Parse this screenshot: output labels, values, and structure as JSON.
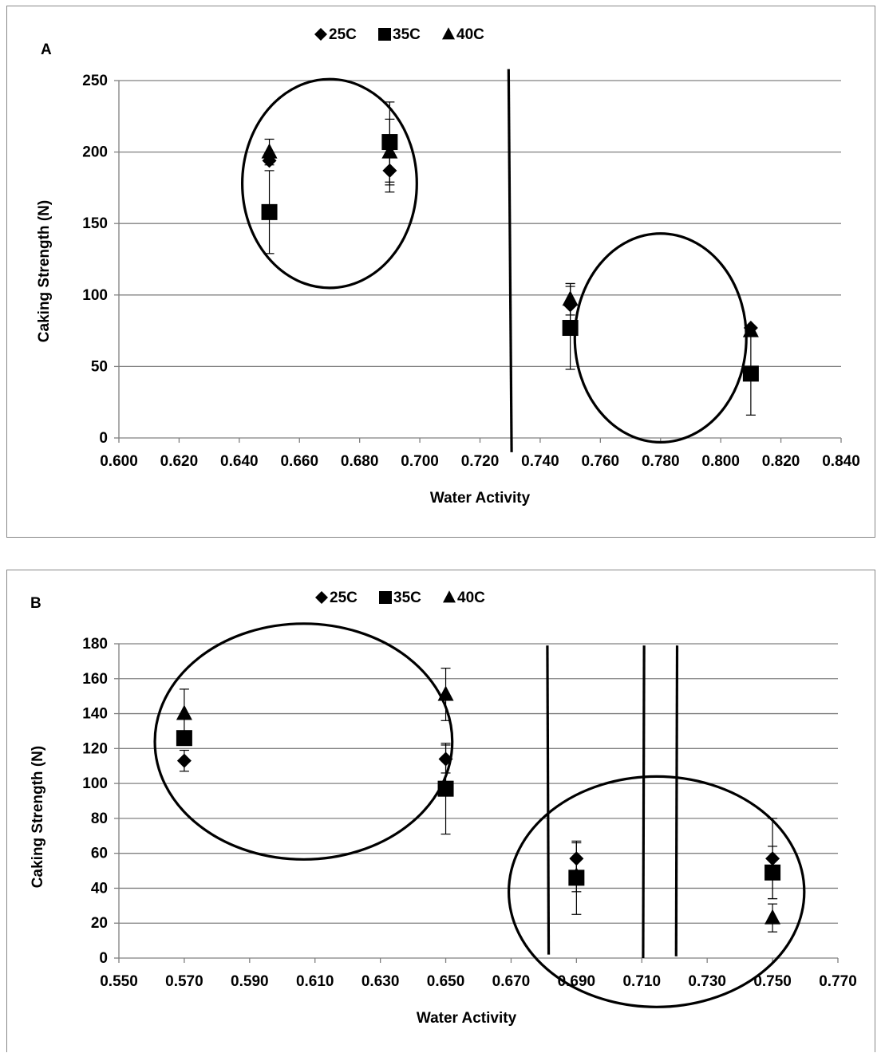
{
  "chart_data": [
    {
      "type": "scatter",
      "panel_label": "A",
      "xlabel": "Water Activity",
      "ylabel": "Caking Strength (N)",
      "xlim": [
        0.6,
        0.84
      ],
      "ylim": [
        0,
        250
      ],
      "x_ticks": [
        "0.600",
        "0.620",
        "0.640",
        "0.660",
        "0.680",
        "0.700",
        "0.720",
        "0.740",
        "0.760",
        "0.780",
        "0.800",
        "0.820",
        "0.840"
      ],
      "y_ticks": [
        "0",
        "50",
        "100",
        "150",
        "200",
        "250"
      ],
      "grid": "horizontal",
      "legend_position": "top-center",
      "series": [
        {
          "name": "25C",
          "marker": "diamond",
          "points": [
            {
              "x": 0.65,
              "y": 194,
              "err": 0
            },
            {
              "x": 0.69,
              "y": 187,
              "err": 15
            },
            {
              "x": 0.75,
              "y": 93,
              "err": 15
            },
            {
              "x": 0.81,
              "y": 77,
              "err": 0
            }
          ]
        },
        {
          "name": "35C",
          "marker": "square",
          "points": [
            {
              "x": 0.65,
              "y": 158,
              "err": 29
            },
            {
              "x": 0.69,
              "y": 207,
              "err": 28
            },
            {
              "x": 0.75,
              "y": 77,
              "err": 29
            },
            {
              "x": 0.81,
              "y": 45,
              "err": 29
            }
          ]
        },
        {
          "name": "40C",
          "marker": "triangle",
          "points": [
            {
              "x": 0.65,
              "y": 200,
              "err": 9
            },
            {
              "x": 0.69,
              "y": 200,
              "err": 23
            },
            {
              "x": 0.75,
              "y": 97,
              "err": 11
            },
            {
              "x": 0.81,
              "y": 75,
              "err": 0
            }
          ]
        }
      ],
      "annotations": [
        {
          "type": "ellipse",
          "cx": 0.67,
          "cy": 178,
          "rx": 0.029,
          "ry": 73
        },
        {
          "type": "ellipse",
          "cx": 0.78,
          "cy": 70,
          "rx": 0.0285,
          "ry": 73
        },
        {
          "type": "line",
          "x1": 0.7295,
          "y1": 258,
          "x2": 0.7305,
          "y2": -10
        }
      ]
    },
    {
      "type": "scatter",
      "panel_label": "B",
      "xlabel": "Water Activity",
      "ylabel": "Caking Strength (N)",
      "xlim": [
        0.55,
        0.77
      ],
      "ylim": [
        0,
        180
      ],
      "x_ticks": [
        "0.550",
        "0.570",
        "0.590",
        "0.610",
        "0.630",
        "0.650",
        "0.670",
        "0.690",
        "0.710",
        "0.730",
        "0.750",
        "0.770"
      ],
      "y_ticks": [
        "0",
        "20",
        "40",
        "60",
        "80",
        "100",
        "120",
        "140",
        "160",
        "180"
      ],
      "grid": "horizontal",
      "legend_position": "top-center",
      "series": [
        {
          "name": "25C",
          "marker": "diamond",
          "points": [
            {
              "x": 0.57,
              "y": 113,
              "err": 6
            },
            {
              "x": 0.65,
              "y": 114,
              "err": 8
            },
            {
              "x": 0.69,
              "y": 57,
              "err": 9
            },
            {
              "x": 0.75,
              "y": 57,
              "err": 23
            }
          ]
        },
        {
          "name": "35C",
          "marker": "square",
          "points": [
            {
              "x": 0.57,
              "y": 126,
              "err": 0
            },
            {
              "x": 0.65,
              "y": 97,
              "err": 26
            },
            {
              "x": 0.69,
              "y": 46,
              "err": 21
            },
            {
              "x": 0.75,
              "y": 49,
              "err": 15
            }
          ]
        },
        {
          "name": "40C",
          "marker": "triangle",
          "points": [
            {
              "x": 0.57,
              "y": 140,
              "err": 14
            },
            {
              "x": 0.65,
              "y": 151,
              "err": 15
            },
            {
              "x": 0.69,
              "y": 47,
              "err": 9
            },
            {
              "x": 0.75,
              "y": 23,
              "err": 8
            }
          ]
        }
      ],
      "annotations": [
        {
          "type": "ellipse",
          "cx": 0.6065,
          "cy": 124,
          "rx": 0.0455,
          "ry": 67.5
        },
        {
          "type": "ellipse",
          "cx": 0.7145,
          "cy": 38,
          "rx": 0.0452,
          "ry": 66
        },
        {
          "type": "line",
          "x1": 0.6811,
          "y1": 179,
          "x2": 0.6815,
          "y2": 2
        },
        {
          "type": "line",
          "x1": 0.7107,
          "y1": 179,
          "x2": 0.7104,
          "y2": 0
        },
        {
          "type": "line",
          "x1": 0.7208,
          "y1": 179,
          "x2": 0.7205,
          "y2": 1
        }
      ]
    }
  ]
}
